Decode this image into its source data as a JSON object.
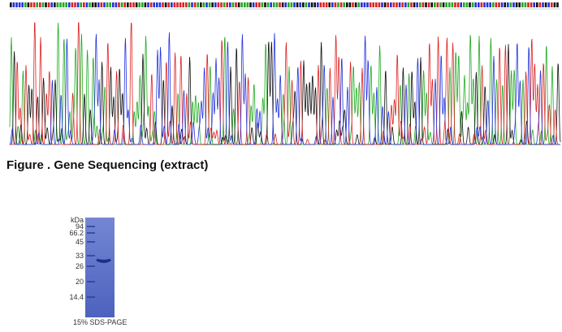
{
  "caption": "Figure . Gene Sequencing (extract)",
  "gel": {
    "unit": "kDa",
    "markers": [
      "94",
      "66.2",
      "45",
      "33",
      "26",
      "20",
      "14.4"
    ],
    "footer": "15% SDS-PAGE"
  }
}
